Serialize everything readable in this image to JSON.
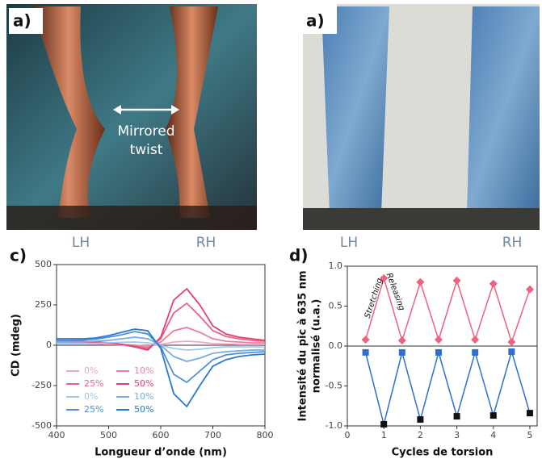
{
  "photos": [
    {
      "label": "a)",
      "annotation": [
        "Mirrored",
        "twist"
      ],
      "left_tag": "LH",
      "right_tag": "RH"
    },
    {
      "label": "a)",
      "left_tag": "LH",
      "right_tag": "RH"
    }
  ],
  "chart_data": [
    {
      "type": "line",
      "panel_label": "c)",
      "x_label": "Longueur d’onde (nm)",
      "y_label": "CD  (mdeg)",
      "x": [
        400,
        425,
        450,
        475,
        500,
        525,
        550,
        575,
        600,
        625,
        650,
        675,
        700,
        725,
        750,
        775,
        800
      ],
      "xlim": [
        400,
        800
      ],
      "xticks": [
        400,
        500,
        600,
        700,
        800
      ],
      "ylim": [
        -500,
        500
      ],
      "yticks": [
        -500,
        -250,
        0,
        250,
        500
      ],
      "legend": "lower left",
      "series": [
        {
          "name": "0%",
          "color": "#f4a6c0",
          "values": [
            10,
            10,
            10,
            8,
            5,
            3,
            0,
            -5,
            5,
            20,
            25,
            20,
            10,
            8,
            5,
            5,
            5
          ]
        },
        {
          "name": "10%",
          "color": "#ee7ea0",
          "values": [
            20,
            20,
            18,
            15,
            10,
            5,
            0,
            -10,
            20,
            90,
            110,
            80,
            40,
            25,
            20,
            15,
            15
          ]
        },
        {
          "name": "25%",
          "color": "#e8628a",
          "values": [
            25,
            25,
            22,
            18,
            12,
            5,
            -5,
            -20,
            40,
            200,
            260,
            180,
            90,
            55,
            40,
            30,
            25
          ]
        },
        {
          "name": "50%",
          "color": "#e33f6e",
          "values": [
            30,
            28,
            25,
            20,
            15,
            5,
            -10,
            -30,
            50,
            280,
            350,
            250,
            120,
            70,
            50,
            40,
            30
          ]
        },
        {
          "name": "0%",
          "color": "#a2c8ea",
          "values": [
            10,
            10,
            10,
            12,
            15,
            18,
            20,
            15,
            0,
            -20,
            -30,
            -25,
            -15,
            -10,
            -10,
            -10,
            -10
          ]
        },
        {
          "name": "10%",
          "color": "#74ade3",
          "values": [
            20,
            20,
            22,
            25,
            30,
            40,
            50,
            40,
            0,
            -70,
            -100,
            -80,
            -50,
            -40,
            -35,
            -30,
            -30
          ]
        },
        {
          "name": "25%",
          "color": "#4b91d8",
          "values": [
            30,
            30,
            32,
            38,
            50,
            65,
            85,
            70,
            -10,
            -180,
            -230,
            -160,
            -90,
            -60,
            -50,
            -45,
            -40
          ]
        },
        {
          "name": "50%",
          "color": "#2a78d0",
          "values": [
            40,
            40,
            40,
            45,
            60,
            80,
            100,
            90,
            -20,
            -300,
            -380,
            -250,
            -130,
            -90,
            -70,
            -60,
            -55
          ]
        }
      ]
    },
    {
      "type": "line-markers",
      "panel_label": "d)",
      "x_label": "Cycles de torsion",
      "y_label": [
        "Intensité du pic à 635 nm",
        "normalisé (u.a.)"
      ],
      "annotations": [
        "Stretching",
        "Releasing"
      ],
      "x": [
        0.5,
        1,
        1.5,
        2,
        2.5,
        3,
        3.5,
        4,
        4.5,
        5
      ],
      "xlim": [
        0,
        5.2
      ],
      "xticks": [
        0,
        1,
        2,
        3,
        4,
        5
      ],
      "ylim": [
        -1,
        1
      ],
      "yticks": [
        {
          "value": -1,
          "label": "-1.0"
        },
        {
          "value": -0.5,
          "label": "-0.5"
        },
        {
          "value": 0,
          "label": "0.0"
        },
        {
          "value": 0.5,
          "label": "0.5"
        },
        {
          "value": 1,
          "label": "1.0"
        }
      ],
      "series": [
        {
          "color": "#f0607f",
          "marker": "diamond",
          "values": [
            0.08,
            0.85,
            0.07,
            0.8,
            0.08,
            0.82,
            0.08,
            0.78,
            0.05,
            0.71
          ]
        },
        {
          "color": "#2f6fd0",
          "marker": "square",
          "values": [
            -0.08,
            -0.98,
            -0.08,
            -0.92,
            -0.08,
            -0.88,
            -0.08,
            -0.87,
            -0.07,
            -0.84
          ]
        }
      ]
    }
  ]
}
